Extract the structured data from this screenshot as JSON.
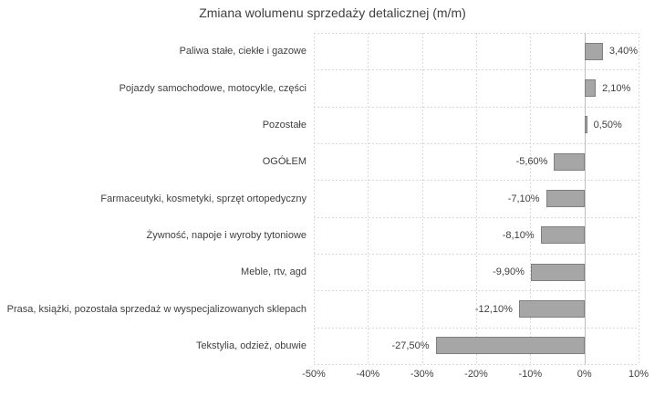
{
  "chart_data": {
    "type": "bar",
    "orientation": "horizontal",
    "title": "Zmiana wolumenu sprzedaży detalicznej (m/m)",
    "xlabel": "",
    "ylabel": "",
    "xlim": [
      -50,
      10
    ],
    "grid": true,
    "legend": false,
    "categories": [
      {
        "label": "Paliwa stałe, ciekłe i gazowe",
        "value": 3.4,
        "value_label": "3,40%"
      },
      {
        "label": "Pojazdy samochodowe, motocykle, części",
        "value": 2.1,
        "value_label": "2,10%"
      },
      {
        "label": "Pozostałe",
        "value": 0.5,
        "value_label": "0,50%"
      },
      {
        "label": "OGÓŁEM",
        "value": -5.6,
        "value_label": "-5,60%"
      },
      {
        "label": "Farmaceutyki, kosmetyki, sprzęt ortopedyczny",
        "value": -7.1,
        "value_label": "-7,10%"
      },
      {
        "label": "Żywność, napoje i wyroby tytoniowe",
        "value": -8.1,
        "value_label": "-8,10%"
      },
      {
        "label": "Meble, rtv, agd",
        "value": -9.9,
        "value_label": "-9,90%"
      },
      {
        "label": "Prasa, książki, pozostała sprzedaż w wyspecjalizowanych sklepach",
        "value": -12.1,
        "value_label": "-12,10%"
      },
      {
        "label": "Tekstylia, odzież, obuwie",
        "value": -27.5,
        "value_label": "-27,50%"
      }
    ],
    "x_ticks": [
      {
        "label": "-50%",
        "value": -50
      },
      {
        "label": "-40%",
        "value": -40
      },
      {
        "label": "-30%",
        "value": -30
      },
      {
        "label": "-20%",
        "value": -20
      },
      {
        "label": "-10%",
        "value": -10
      },
      {
        "label": "0%",
        "value": 0
      },
      {
        "label": "10%",
        "value": 10
      }
    ],
    "colors": {
      "bar_fill": "#a6a6a6",
      "bar_border": "#7f7f7f",
      "gridline": "#d9d9d9",
      "axis_line": "#bfbfbf",
      "text": "#404040",
      "title_text": "#404040",
      "background": "#ffffff"
    }
  }
}
